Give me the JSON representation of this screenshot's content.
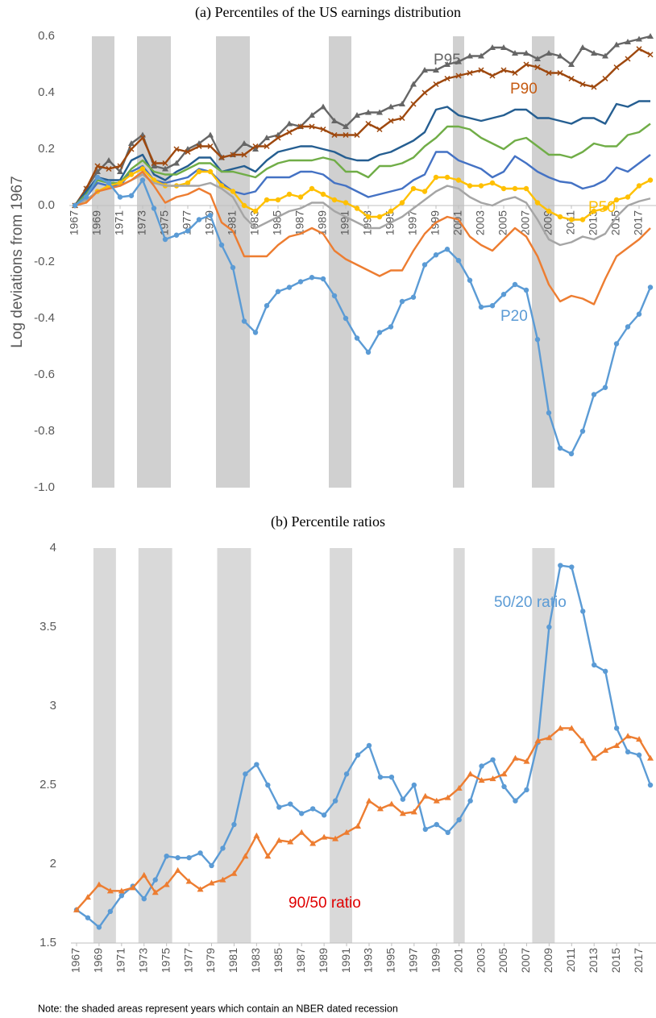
{
  "chart_data": [
    {
      "type": "line",
      "title": "(a) Percentiles of the US earnings distribution",
      "y_label": "Log deviations from 1967",
      "x": [
        1967,
        1968,
        1969,
        1970,
        1971,
        1972,
        1973,
        1974,
        1975,
        1976,
        1977,
        1978,
        1979,
        1980,
        1981,
        1982,
        1983,
        1984,
        1985,
        1986,
        1987,
        1988,
        1989,
        1990,
        1991,
        1992,
        1993,
        1994,
        1995,
        1996,
        1997,
        1998,
        1999,
        2000,
        2001,
        2002,
        2003,
        2004,
        2005,
        2006,
        2007,
        2008,
        2009,
        2010,
        2011,
        2012,
        2013,
        2014,
        2015,
        2016,
        2017,
        2018
      ],
      "xlim": [
        1966.5,
        2018.5
      ],
      "xticks": [
        1967,
        1969,
        1971,
        1973,
        1975,
        1977,
        1979,
        1981,
        1983,
        1985,
        1987,
        1989,
        1991,
        1993,
        1995,
        1997,
        1999,
        2001,
        2003,
        2005,
        2007,
        2009,
        2011,
        2013,
        2015,
        2017
      ],
      "ylim": [
        -1,
        0.6
      ],
      "yticks": [
        0.6,
        0.4,
        0.2,
        {
          "value": 0,
          "label": "0.0"
        },
        -0.2,
        -0.4,
        -0.6,
        -0.8,
        {
          "value": -1,
          "label": "-1.0"
        }
      ],
      "recessions": [
        [
          1969,
          1970
        ],
        [
          1973,
          1975
        ],
        [
          1980,
          1982
        ],
        [
          1990,
          1991
        ],
        [
          2001,
          2001
        ],
        [
          2008,
          2009
        ]
      ],
      "recession_color": "#d0d0d0",
      "series": [
        {
          "name": "P95",
          "color": "#666666",
          "label_color": "#666666",
          "marker": "triangle",
          "values": [
            0,
            0.06,
            0.12,
            0.16,
            0.12,
            0.22,
            0.25,
            0.14,
            0.13,
            0.15,
            0.2,
            0.22,
            0.25,
            0.17,
            0.18,
            0.22,
            0.2,
            0.24,
            0.25,
            0.29,
            0.28,
            0.32,
            0.35,
            0.3,
            0.28,
            0.32,
            0.33,
            0.33,
            0.35,
            0.36,
            0.43,
            0.48,
            0.48,
            0.5,
            0.51,
            0.53,
            0.53,
            0.56,
            0.56,
            0.54,
            0.54,
            0.52,
            0.54,
            0.53,
            0.5,
            0.56,
            0.54,
            0.53,
            0.57,
            0.58,
            0.59,
            0.6
          ]
        },
        {
          "name": "P90",
          "color": "#9e480e",
          "label_color": "#c55a11",
          "marker": "cross",
          "values": [
            0,
            0.06,
            0.14,
            0.13,
            0.14,
            0.2,
            0.24,
            0.15,
            0.15,
            0.2,
            0.19,
            0.21,
            0.21,
            0.17,
            0.18,
            0.18,
            0.21,
            0.21,
            0.24,
            0.26,
            0.28,
            0.28,
            0.27,
            0.25,
            0.25,
            0.25,
            0.29,
            0.27,
            0.3,
            0.31,
            0.36,
            0.4,
            0.43,
            0.45,
            0.46,
            0.47,
            0.48,
            0.46,
            0.48,
            0.47,
            0.5,
            0.49,
            0.47,
            0.47,
            0.45,
            0.43,
            0.42,
            0.45,
            0.49,
            0.52,
            0.555,
            0.535
          ]
        },
        {
          "color": "#255e91",
          "marker": "none",
          "values": [
            0,
            0.05,
            0.1,
            0.09,
            0.09,
            0.16,
            0.18,
            0.11,
            0.09,
            0.12,
            0.14,
            0.17,
            0.17,
            0.12,
            0.13,
            0.14,
            0.12,
            0.16,
            0.19,
            0.2,
            0.21,
            0.21,
            0.2,
            0.19,
            0.17,
            0.16,
            0.16,
            0.18,
            0.19,
            0.21,
            0.23,
            0.26,
            0.34,
            0.35,
            0.32,
            0.31,
            0.3,
            0.31,
            0.32,
            0.34,
            0.34,
            0.31,
            0.31,
            0.3,
            0.29,
            0.31,
            0.31,
            0.29,
            0.36,
            0.35,
            0.37,
            0.37
          ]
        },
        {
          "color": "#70ad47",
          "marker": "none",
          "values": [
            0,
            0.04,
            0.09,
            0.08,
            0.08,
            0.13,
            0.16,
            0.12,
            0.11,
            0.11,
            0.13,
            0.15,
            0.15,
            0.12,
            0.12,
            0.11,
            0.1,
            0.13,
            0.15,
            0.16,
            0.16,
            0.16,
            0.17,
            0.16,
            0.12,
            0.12,
            0.1,
            0.14,
            0.14,
            0.15,
            0.17,
            0.21,
            0.24,
            0.28,
            0.28,
            0.27,
            0.24,
            0.22,
            0.2,
            0.23,
            0.24,
            0.21,
            0.18,
            0.18,
            0.17,
            0.19,
            0.22,
            0.21,
            0.21,
            0.25,
            0.26,
            0.29
          ]
        },
        {
          "color": "#4472c4",
          "marker": "none",
          "values": [
            0,
            0.03,
            0.08,
            0.07,
            0.07,
            0.12,
            0.14,
            0.09,
            0.08,
            0.09,
            0.1,
            0.13,
            0.12,
            0.08,
            0.05,
            0.04,
            0.05,
            0.1,
            0.1,
            0.1,
            0.12,
            0.12,
            0.11,
            0.08,
            0.07,
            0.05,
            0.03,
            0.04,
            0.05,
            0.06,
            0.09,
            0.11,
            0.19,
            0.19,
            0.16,
            0.145,
            0.13,
            0.1,
            0.12,
            0.175,
            0.15,
            0.12,
            0.1,
            0.085,
            0.08,
            0.06,
            0.07,
            0.09,
            0.135,
            0.12,
            0.15,
            0.18
          ]
        },
        {
          "name": "P50",
          "color": "#ffc000",
          "label_color": "#ffc000",
          "marker": "dot",
          "values": [
            0,
            0.02,
            0.05,
            0.07,
            0.08,
            0.11,
            0.13,
            0.09,
            0.07,
            0.07,
            0.08,
            0.12,
            0.12,
            0.07,
            0.05,
            0,
            -0.02,
            0.02,
            0.02,
            0.04,
            0.03,
            0.06,
            0.04,
            0.02,
            0.01,
            -0.01,
            -0.04,
            -0.04,
            -0.02,
            0.01,
            0.06,
            0.05,
            0.1,
            0.1,
            0.09,
            0.07,
            0.07,
            0.08,
            0.06,
            0.06,
            0.06,
            0.01,
            -0.02,
            -0.04,
            -0.05,
            -0.05,
            -0.02,
            -0.01,
            0.02,
            0.03,
            0.07,
            0.09
          ]
        },
        {
          "color": "#a5a5a5",
          "marker": "none",
          "values": [
            0,
            0.02,
            0.05,
            0.06,
            0.07,
            0.09,
            0.11,
            0.08,
            0.07,
            0.07,
            0.07,
            0.07,
            0.08,
            0.06,
            0.03,
            -0.04,
            -0.08,
            -0.06,
            -0.04,
            -0.02,
            -0.01,
            0.01,
            0.01,
            -0.02,
            -0.04,
            -0.06,
            -0.08,
            -0.08,
            -0.06,
            -0.04,
            -0.01,
            0.02,
            0.05,
            0.07,
            0.06,
            0.03,
            0.01,
            0,
            0.02,
            0.03,
            0.01,
            -0.05,
            -0.12,
            -0.14,
            -0.13,
            -0.11,
            -0.12,
            -0.1,
            -0.04,
            0,
            0.015,
            0.025
          ]
        },
        {
          "color": "#ed7d31",
          "marker": "none",
          "values": [
            0,
            0.01,
            0.05,
            0.06,
            0.07,
            0.09,
            0.12,
            0.07,
            0.01,
            0.03,
            0.04,
            0.06,
            0.04,
            -0.06,
            -0.09,
            -0.18,
            -0.18,
            -0.18,
            -0.14,
            -0.11,
            -0.1,
            -0.08,
            -0.1,
            -0.16,
            -0.19,
            -0.21,
            -0.23,
            -0.25,
            -0.23,
            -0.23,
            -0.16,
            -0.1,
            -0.06,
            -0.04,
            -0.05,
            -0.11,
            -0.14,
            -0.16,
            -0.12,
            -0.08,
            -0.11,
            -0.18,
            -0.28,
            -0.34,
            -0.32,
            -0.33,
            -0.35,
            -0.26,
            -0.18,
            -0.15,
            -0.12,
            -0.08
          ]
        },
        {
          "name": "P20",
          "color": "#5b9bd5",
          "label_color": "#5b9bd5",
          "marker": "dot",
          "values": [
            0,
            0.03,
            0.1,
            0.08,
            0.03,
            0.035,
            0.09,
            -0.01,
            -0.12,
            -0.105,
            -0.09,
            -0.05,
            -0.035,
            -0.14,
            -0.22,
            -0.41,
            -0.45,
            -0.355,
            -0.305,
            -0.29,
            -0.27,
            -0.255,
            -0.26,
            -0.32,
            -0.4,
            -0.47,
            -0.52,
            -0.45,
            -0.43,
            -0.34,
            -0.325,
            -0.21,
            -0.175,
            -0.155,
            -0.195,
            -0.265,
            -0.36,
            -0.355,
            -0.315,
            -0.28,
            -0.3,
            -0.475,
            -0.735,
            -0.86,
            -0.88,
            -0.8,
            -0.67,
            -0.645,
            -0.49,
            -0.43,
            -0.385,
            -0.29
          ]
        }
      ]
    },
    {
      "type": "line",
      "title": "(b) Percentile ratios",
      "x": [
        1967,
        1968,
        1969,
        1970,
        1971,
        1972,
        1973,
        1974,
        1975,
        1976,
        1977,
        1978,
        1979,
        1980,
        1981,
        1982,
        1983,
        1984,
        1985,
        1986,
        1987,
        1988,
        1989,
        1990,
        1991,
        1992,
        1993,
        1994,
        1995,
        1996,
        1997,
        1998,
        1999,
        2000,
        2001,
        2002,
        2003,
        2004,
        2005,
        2006,
        2007,
        2008,
        2009,
        2010,
        2011,
        2012,
        2013,
        2014,
        2015,
        2016,
        2017,
        2018
      ],
      "xlim": [
        1966.5,
        2018.5
      ],
      "xticks": [
        1967,
        1969,
        1971,
        1973,
        1975,
        1977,
        1979,
        1981,
        1983,
        1985,
        1987,
        1989,
        1991,
        1993,
        1995,
        1997,
        1999,
        2001,
        2003,
        2005,
        2007,
        2009,
        2011,
        2013,
        2015,
        2017
      ],
      "ylim": [
        1.5,
        4
      ],
      "yticks": [
        4,
        3.5,
        3,
        2.5,
        2,
        1.5
      ],
      "recessions": [
        [
          1969,
          1970
        ],
        [
          1973,
          1975
        ],
        [
          1980,
          1982
        ],
        [
          1990,
          1991
        ],
        [
          2001,
          2001
        ],
        [
          2008,
          2009
        ]
      ],
      "recession_color": "#d9d9d9",
      "series": [
        {
          "name": "50/20 ratio",
          "color": "#5b9bd5",
          "label_color": "#5b9bd5",
          "marker": "dot",
          "values": [
            1.71,
            1.66,
            1.6,
            1.7,
            1.8,
            1.86,
            1.78,
            1.9,
            2.05,
            2.04,
            2.04,
            2.07,
            1.99,
            2.1,
            2.25,
            2.57,
            2.63,
            2.5,
            2.36,
            2.38,
            2.32,
            2.35,
            2.31,
            2.4,
            2.57,
            2.69,
            2.75,
            2.55,
            2.55,
            2.41,
            2.5,
            2.22,
            2.25,
            2.2,
            2.28,
            2.4,
            2.62,
            2.66,
            2.49,
            2.4,
            2.47,
            2.77,
            3.5,
            3.89,
            3.88,
            3.6,
            3.26,
            3.22,
            2.86,
            2.71,
            2.69,
            2.5
          ]
        },
        {
          "name": "90/50 ratio",
          "color": "#ed7d31",
          "label_color": "#e00000",
          "marker": "triangle",
          "values": [
            1.71,
            1.79,
            1.87,
            1.83,
            1.83,
            1.85,
            1.93,
            1.82,
            1.87,
            1.96,
            1.89,
            1.84,
            1.88,
            1.9,
            1.94,
            2.05,
            2.18,
            2.05,
            2.15,
            2.14,
            2.2,
            2.13,
            2.17,
            2.16,
            2.2,
            2.24,
            2.4,
            2.35,
            2.38,
            2.32,
            2.33,
            2.43,
            2.4,
            2.42,
            2.48,
            2.57,
            2.53,
            2.54,
            2.57,
            2.67,
            2.65,
            2.78,
            2.8,
            2.86,
            2.86,
            2.78,
            2.67,
            2.72,
            2.75,
            2.81,
            2.79,
            2.67
          ]
        }
      ]
    }
  ],
  "note": "Note: the shaded areas represent years which contain an NBER dated recession"
}
